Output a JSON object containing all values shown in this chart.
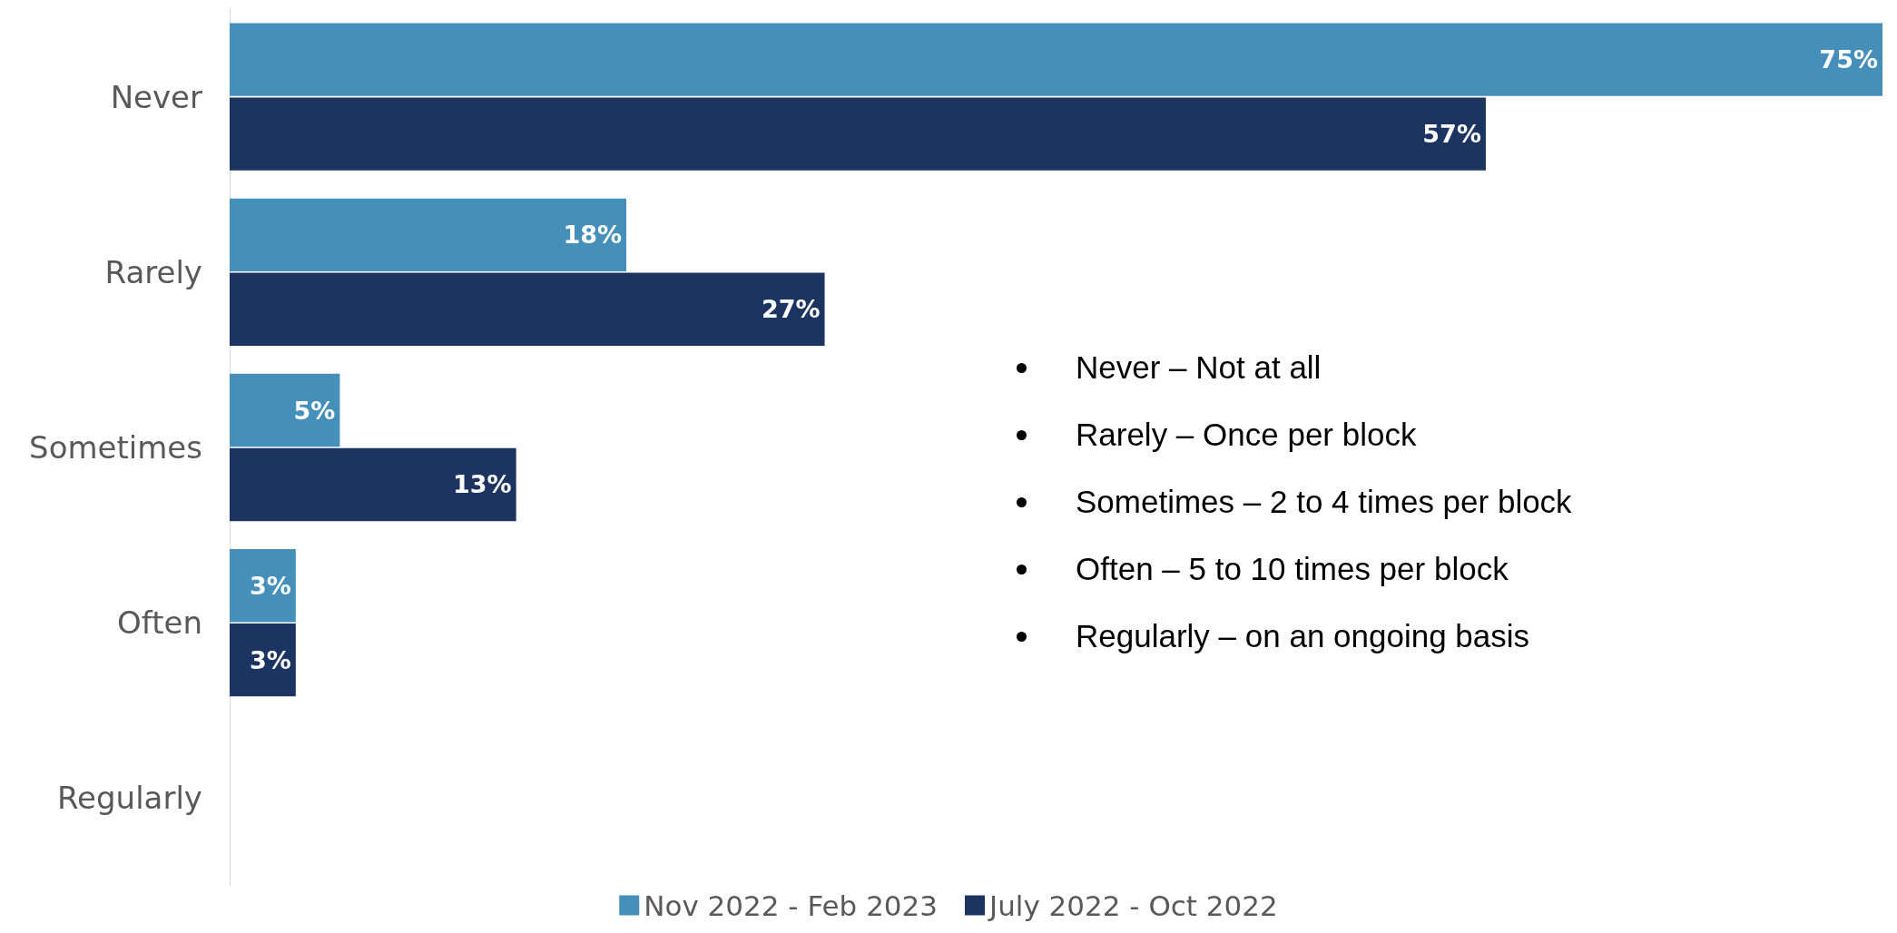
{
  "chart_data": {
    "type": "bar",
    "orientation": "horizontal",
    "categories": [
      "Never",
      "Rarely",
      "Sometimes",
      "Often",
      "Regularly"
    ],
    "series": [
      {
        "name": "Nov 2022 - Feb 2023",
        "color": "#4590bb",
        "values": [
          75,
          18,
          5,
          3,
          null
        ],
        "value_labels": [
          "75%",
          "18%",
          "5%",
          "3%",
          null
        ]
      },
      {
        "name": "July 2022 - Oct 2022",
        "color": "#1c3461",
        "values": [
          57,
          27,
          13,
          3,
          null
        ],
        "value_labels": [
          "57%",
          "27%",
          "13%",
          "3%",
          null
        ]
      }
    ],
    "xlim": [
      0,
      75
    ],
    "tick_labels": "y",
    "legend": "bottom",
    "annotations": [
      "Never – Not at all",
      "Rarely – Once per block",
      "Sometimes – 2 to 4 times per block",
      "Often – 5 to 10 times per block",
      "Regularly – on an ongoing basis"
    ]
  }
}
